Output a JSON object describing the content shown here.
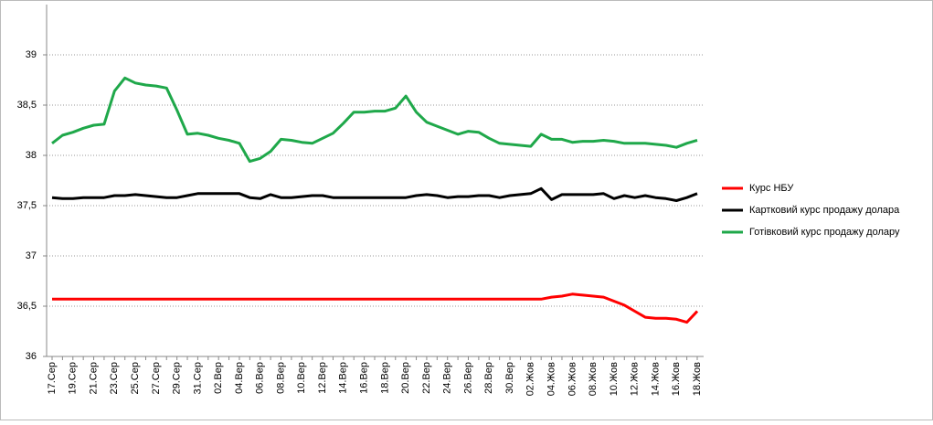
{
  "chart_data": {
    "type": "line",
    "categories": [
      "17.Сер",
      null,
      "19.Сер",
      null,
      "21.Сер",
      null,
      "23.Сер",
      null,
      "25.Сер",
      null,
      "27.Сер",
      null,
      "29.Сер",
      null,
      "31.Сер",
      null,
      "02.Вер",
      null,
      "04.Вер",
      null,
      "06.Вер",
      null,
      "08.Вер",
      null,
      "10.Вер",
      null,
      "12.Вер",
      null,
      "14.Вер",
      null,
      "16.Вер",
      null,
      "18.Вер",
      null,
      "20.Вер",
      null,
      "22.Вер",
      null,
      "24.Вер",
      null,
      "26.Вер",
      null,
      "28.Вер",
      null,
      "30.Вер",
      null,
      "02.Жов",
      null,
      "04.Жов",
      null,
      "06.Жов",
      null,
      "08.Жов",
      null,
      "10.Жов",
      null,
      "12.Жов",
      null,
      "14.Жов",
      null,
      "16.Жов",
      null,
      "18.Жов"
    ],
    "series": [
      {
        "name": "Курс НБУ",
        "color": "#ff0000",
        "values": [
          36.57,
          36.57,
          36.57,
          36.57,
          36.57,
          36.57,
          36.57,
          36.57,
          36.57,
          36.57,
          36.57,
          36.57,
          36.57,
          36.57,
          36.57,
          36.57,
          36.57,
          36.57,
          36.57,
          36.57,
          36.57,
          36.57,
          36.57,
          36.57,
          36.57,
          36.57,
          36.57,
          36.57,
          36.57,
          36.57,
          36.57,
          36.57,
          36.57,
          36.57,
          36.57,
          36.57,
          36.57,
          36.57,
          36.57,
          36.57,
          36.57,
          36.57,
          36.57,
          36.57,
          36.57,
          36.57,
          36.57,
          36.57,
          36.59,
          36.6,
          36.62,
          36.61,
          36.6,
          36.59,
          36.55,
          36.51,
          36.45,
          36.39,
          36.38,
          36.38,
          36.37,
          36.34,
          36.45
        ]
      },
      {
        "name": "Картковий курс продажу долара",
        "color": "#000000",
        "values": [
          37.58,
          37.57,
          37.57,
          37.58,
          37.58,
          37.58,
          37.6,
          37.6,
          37.61,
          37.6,
          37.59,
          37.58,
          37.58,
          37.6,
          37.62,
          37.62,
          37.62,
          37.62,
          37.62,
          37.58,
          37.57,
          37.61,
          37.58,
          37.58,
          37.59,
          37.6,
          37.6,
          37.58,
          37.58,
          37.58,
          37.58,
          37.58,
          37.58,
          37.58,
          37.58,
          37.6,
          37.61,
          37.6,
          37.58,
          37.59,
          37.59,
          37.6,
          37.6,
          37.58,
          37.6,
          37.61,
          37.62,
          37.67,
          37.56,
          37.61,
          37.61,
          37.61,
          37.61,
          37.62,
          37.57,
          37.6,
          37.58,
          37.6,
          37.58,
          37.57,
          37.55,
          37.58,
          37.62
        ]
      },
      {
        "name": "Готівковий курс продажу долару",
        "color": "#1fa84a",
        "values": [
          38.12,
          38.2,
          38.23,
          38.27,
          38.3,
          38.31,
          38.64,
          38.77,
          38.72,
          38.7,
          38.69,
          38.67,
          38.45,
          38.21,
          38.22,
          38.2,
          38.17,
          38.15,
          38.12,
          37.94,
          37.97,
          38.04,
          38.16,
          38.15,
          38.13,
          38.12,
          38.17,
          38.22,
          38.32,
          38.43,
          38.43,
          38.44,
          38.44,
          38.47,
          38.59,
          38.43,
          38.33,
          38.29,
          38.25,
          38.21,
          38.24,
          38.23,
          38.17,
          38.12,
          38.11,
          38.1,
          38.09,
          38.21,
          38.16,
          38.16,
          38.13,
          38.14,
          38.14,
          38.15,
          38.14,
          38.12,
          38.12,
          38.12,
          38.11,
          38.1,
          38.08,
          38.12,
          38.15
        ]
      }
    ],
    "ylim": [
      36,
      39.5
    ],
    "yticks": [
      36,
      {
        "value": 36.5,
        "label": "36,5"
      },
      37,
      {
        "value": 37.5,
        "label": "37,5"
      },
      38,
      {
        "value": 38.5,
        "label": "38,5"
      },
      39
    ],
    "grid": true,
    "legend": "right"
  }
}
